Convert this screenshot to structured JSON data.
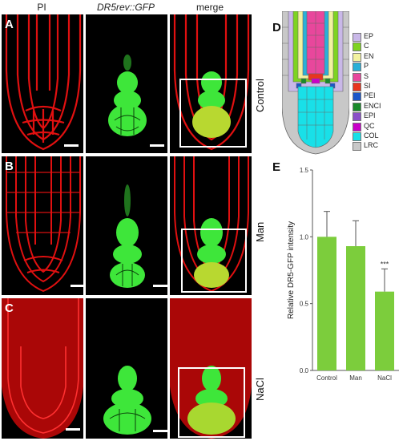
{
  "columns": [
    "PI",
    "DR5rev::GFP",
    "merge"
  ],
  "rows": [
    {
      "letter": "A",
      "condition": "Control"
    },
    {
      "letter": "B",
      "condition": "Man"
    },
    {
      "letter": "C",
      "condition": "NaCl"
    }
  ],
  "diagram": {
    "letter": "D",
    "legend": [
      {
        "label": "EP",
        "color": "#c9b8e8"
      },
      {
        "label": "C",
        "color": "#7ed321"
      },
      {
        "label": "EN",
        "color": "#f2f2a0"
      },
      {
        "label": "P",
        "color": "#2ab0d8"
      },
      {
        "label": "S",
        "color": "#e8479c"
      },
      {
        "label": "SI",
        "color": "#e8351e"
      },
      {
        "label": "PEI",
        "color": "#1a56c8"
      },
      {
        "label": "ENCI",
        "color": "#1a8a2a"
      },
      {
        "label": "EPI",
        "color": "#8a50c8"
      },
      {
        "label": "QC",
        "color": "#c800c8"
      },
      {
        "label": "COL",
        "color": "#19e0e8"
      },
      {
        "label": "LRC",
        "color": "#c8c8c8"
      }
    ]
  },
  "chart_data": {
    "type": "bar",
    "letter": "E",
    "categories": [
      "Control",
      "Man",
      "NaCl"
    ],
    "values": [
      1.0,
      0.93,
      0.59
    ],
    "errors": [
      0.19,
      0.19,
      0.17
    ],
    "significance": [
      "",
      "",
      "***"
    ],
    "ylabel": "Relative DR5-GFP intensity",
    "ylim": [
      0.0,
      1.5
    ],
    "yticks": [
      "0.0",
      "0.5",
      "1.0",
      "1.5"
    ],
    "bar_color": "#7ccd3c"
  }
}
